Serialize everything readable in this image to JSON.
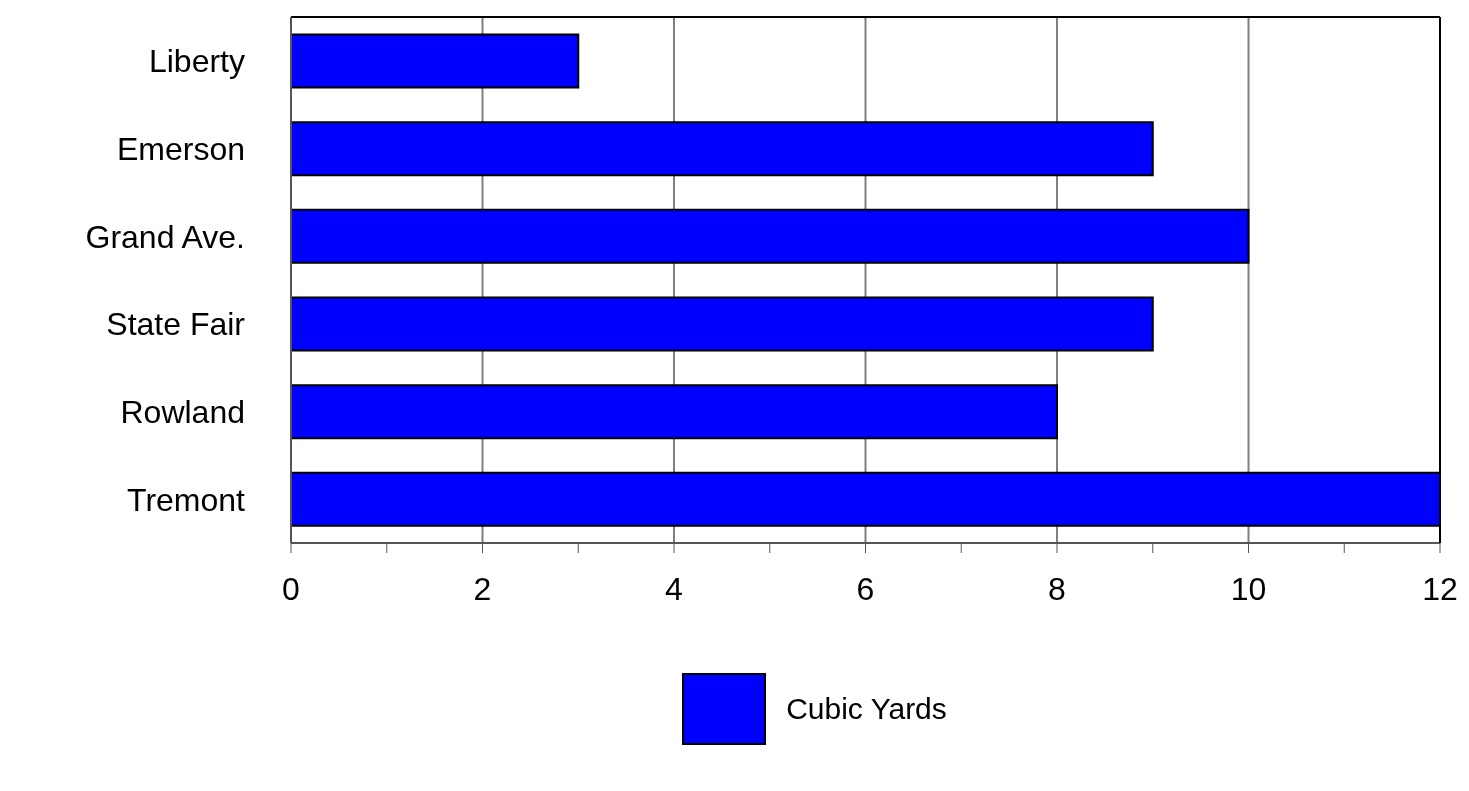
{
  "chart_data": {
    "type": "bar",
    "orientation": "horizontal",
    "categories": [
      "Liberty",
      "Emerson",
      "Grand Ave.",
      "State Fair",
      "Rowland",
      "Tremont"
    ],
    "series": [
      {
        "name": "Cubic Yards",
        "color": "#0000ff",
        "values": [
          3,
          9,
          10,
          9,
          8,
          12
        ]
      }
    ],
    "xlim": [
      0,
      12
    ],
    "xticks": [
      0,
      {
        "value": 1,
        "label": null
      },
      2,
      {
        "value": 3,
        "label": null
      },
      4,
      {
        "value": 5,
        "label": null
      },
      6,
      {
        "value": 7,
        "label": null
      },
      8,
      {
        "value": 9,
        "label": null
      },
      10,
      {
        "value": 11,
        "label": null
      },
      12
    ],
    "grid": "x",
    "legend": "bottom"
  }
}
